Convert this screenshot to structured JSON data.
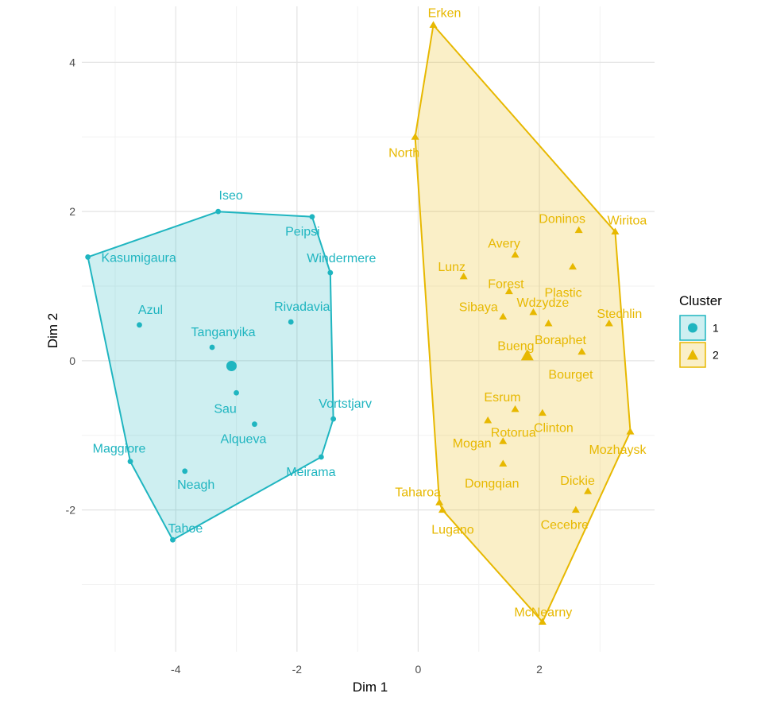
{
  "chart_data": {
    "type": "scatter",
    "xlabel": "Dim 1",
    "ylabel": "Dim 2",
    "xlim": [
      -5.55,
      3.9
    ],
    "ylim": [
      -3.9,
      4.75
    ],
    "xticks": [
      -4,
      -2,
      0,
      2
    ],
    "yticks": [
      -2,
      0,
      2,
      4
    ],
    "xtick_labels": [
      "-4",
      "-2",
      "0",
      "2"
    ],
    "ytick_labels": [
      "-2",
      "0",
      "2",
      "4"
    ],
    "grid": true,
    "legend": {
      "title": "Cluster",
      "position": "right"
    },
    "series": [
      {
        "name": "1",
        "color": "#1FB5C0",
        "marker": "circle",
        "hull": [
          "Kasumigaura",
          "Iseo",
          "Peipsi",
          "Windermere",
          "Vortstjarv",
          "Meirama",
          "Tahoe",
          "Maggiore"
        ],
        "centroid": {
          "x": -3.08,
          "y": -0.07
        },
        "points": [
          {
            "label": "Iseo",
            "x": -3.3,
            "y": 2.0
          },
          {
            "label": "Peipsi",
            "x": -1.75,
            "y": 1.93
          },
          {
            "label": "Kasumigaura",
            "x": -5.45,
            "y": 1.39
          },
          {
            "label": "Windermere",
            "x": -1.45,
            "y": 1.18
          },
          {
            "label": "Rivadavia",
            "x": -2.1,
            "y": 0.52
          },
          {
            "label": "Azul",
            "x": -4.6,
            "y": 0.48
          },
          {
            "label": "Tanganyika",
            "x": -3.4,
            "y": 0.18
          },
          {
            "label": "Sau",
            "x": -3.0,
            "y": -0.43
          },
          {
            "label": "Alqueva",
            "x": -2.7,
            "y": -0.85
          },
          {
            "label": "Vortstjarv",
            "x": -1.4,
            "y": -0.78
          },
          {
            "label": "Maggiore",
            "x": -4.75,
            "y": -1.35
          },
          {
            "label": "Neagh",
            "x": -3.85,
            "y": -1.48
          },
          {
            "label": "Meirama",
            "x": -1.6,
            "y": -1.29
          },
          {
            "label": "Tahoe",
            "x": -4.05,
            "y": -2.4
          }
        ]
      },
      {
        "name": "2",
        "color": "#E7B800",
        "marker": "triangle",
        "hull": [
          "Erken",
          "Wiritoa",
          "Mozhaysk",
          "McNearny",
          "Lugano",
          "Taharoa",
          "North"
        ],
        "centroid": {
          "x": 1.8,
          "y": 0.07
        },
        "points": [
          {
            "label": "Erken",
            "x": 0.25,
            "y": 4.5
          },
          {
            "label": "North",
            "x": -0.05,
            "y": 3.0
          },
          {
            "label": "Doninos",
            "x": 2.65,
            "y": 1.75
          },
          {
            "label": "Wiritoa",
            "x": 3.25,
            "y": 1.73
          },
          {
            "label": "Avery",
            "x": 1.6,
            "y": 1.42
          },
          {
            "label": "Plastic",
            "x": 2.55,
            "y": 1.26
          },
          {
            "label": "Lunz",
            "x": 0.75,
            "y": 1.13
          },
          {
            "label": "Forest",
            "x": 1.5,
            "y": 0.93
          },
          {
            "label": "Wdzydze",
            "x": 1.9,
            "y": 0.65
          },
          {
            "label": "Sibaya",
            "x": 1.4,
            "y": 0.59
          },
          {
            "label": "Boraphet",
            "x": 2.15,
            "y": 0.5
          },
          {
            "label": "Stechlin",
            "x": 3.15,
            "y": 0.5
          },
          {
            "label": "Bueng",
            "x": 2.7,
            "y": 0.12
          },
          {
            "label": "Bourget",
            "x": 2.7,
            "y": 0.12
          },
          {
            "label": "Esrum",
            "x": 1.6,
            "y": -0.65
          },
          {
            "label": "Clinton",
            "x": 2.05,
            "y": -0.7
          },
          {
            "label": "Mogan",
            "x": 1.15,
            "y": -0.8
          },
          {
            "label": "Rotorua",
            "x": 1.4,
            "y": -1.08
          },
          {
            "label": "Mozhaysk",
            "x": 3.5,
            "y": -0.95
          },
          {
            "label": "Dongqian",
            "x": 1.4,
            "y": -1.38
          },
          {
            "label": "Dickie",
            "x": 2.8,
            "y": -1.75
          },
          {
            "label": "Taharoa",
            "x": 0.35,
            "y": -1.9
          },
          {
            "label": "Lugano",
            "x": 0.4,
            "y": -2.0
          },
          {
            "label": "Cecebre",
            "x": 2.6,
            "y": -2.0
          },
          {
            "label": "McNearny",
            "x": 2.05,
            "y": -3.5
          }
        ]
      }
    ]
  }
}
